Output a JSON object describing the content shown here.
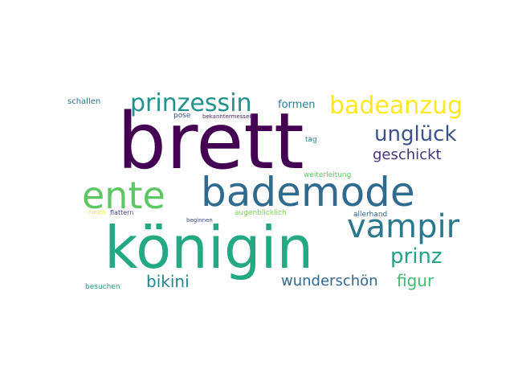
{
  "words": [
    {
      "text": "brett",
      "color": "#440154"
    },
    {
      "text": "königin",
      "color": "#23a983"
    },
    {
      "text": "bademode",
      "color": "#2f6b8e"
    },
    {
      "text": "ente",
      "color": "#5cc863"
    },
    {
      "text": "vampir",
      "color": "#2a788e"
    },
    {
      "text": "prinzessin",
      "color": "#21918c"
    },
    {
      "text": "badeanzug",
      "color": "#fde725"
    },
    {
      "text": "unglück",
      "color": "#3b528b"
    },
    {
      "text": "prinz",
      "color": "#20a386"
    },
    {
      "text": "geschickt",
      "color": "#46337e"
    },
    {
      "text": "bikini",
      "color": "#25858e"
    },
    {
      "text": "figur",
      "color": "#3dbc74"
    },
    {
      "text": "wunderschön",
      "color": "#31688e"
    },
    {
      "text": "formen",
      "color": "#2a7b8e"
    },
    {
      "text": "schallen",
      "color": "#2c728e"
    },
    {
      "text": "pose",
      "color": "#3b528b"
    },
    {
      "text": "bekanntermessen",
      "color": "#482878"
    },
    {
      "text": "tag",
      "color": "#26828e"
    },
    {
      "text": "weiterleitung",
      "color": "#5ec962"
    },
    {
      "text": "hauch",
      "color": "#fde725"
    },
    {
      "text": "flattern",
      "color": "#443a83"
    },
    {
      "text": "beginnen",
      "color": "#3e4989"
    },
    {
      "text": "augenblicklich",
      "color": "#7ad151"
    },
    {
      "text": "allerhand",
      "color": "#31688e"
    },
    {
      "text": "besuchen",
      "color": "#1f9e89"
    }
  ]
}
